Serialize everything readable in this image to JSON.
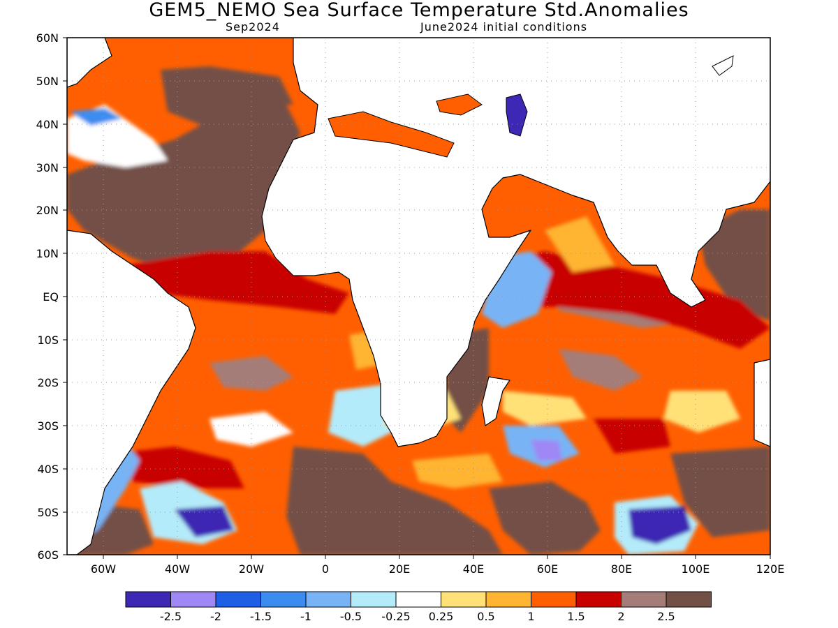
{
  "title": "GEM5_NEMO Sea Surface Temperature Std.Anomalies",
  "subtitle_left": "Sep2024",
  "subtitle_right": "June2024 initial conditions",
  "lat_labels": [
    "60N",
    "50N",
    "40N",
    "30N",
    "20N",
    "10N",
    "EQ",
    "10S",
    "20S",
    "30S",
    "40S",
    "50S",
    "60S"
  ],
  "lon_labels": [
    "60W",
    "40W",
    "20W",
    "0",
    "20E",
    "40E",
    "60E",
    "80E",
    "100E",
    "120E"
  ],
  "colorbar": {
    "colors": [
      "#3c28b4",
      "#9f87f5",
      "#1f5fe6",
      "#3c8cf0",
      "#78b4f5",
      "#b4ebfa",
      "#ffffff",
      "#ffe178",
      "#ffb432",
      "#ff5f00",
      "#c80000",
      "#a57d78",
      "#735046"
    ],
    "labels": [
      "-2.5",
      "-2",
      "-1.5",
      "-1",
      "-0.5",
      "-0.25",
      "0.25",
      "0.5",
      "1",
      "1.5",
      "2",
      "2.5"
    ]
  },
  "chart_data": {
    "type": "heatmap",
    "variable": "Sea Surface Temperature Std.Anomalies",
    "lon_range": [
      -70,
      120
    ],
    "lat_range": [
      -60,
      60
    ],
    "grid": true,
    "color_levels": [
      -2.5,
      -2,
      -1.5,
      -1,
      -0.5,
      -0.25,
      0.25,
      0.5,
      1,
      1.5,
      2,
      2.5
    ]
  }
}
